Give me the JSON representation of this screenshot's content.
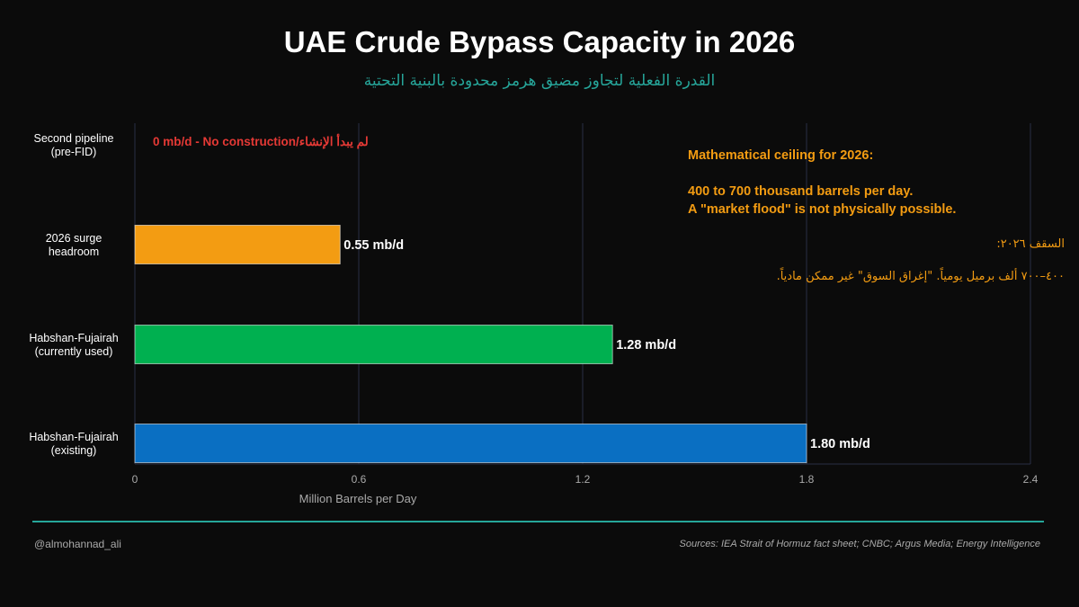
{
  "header": {
    "title": "UAE Crude Bypass Capacity in 2026",
    "subtitle": "القدرة الفعلية لتجاوز مضيق هرمز محدودة بالبنية التحتية"
  },
  "chart_data": {
    "type": "bar",
    "orientation": "horizontal",
    "categories": [
      [
        "Habshan-Fujairah",
        "(existing)"
      ],
      [
        "Habshan-Fujairah",
        "(currently used)"
      ],
      [
        "2026 surge",
        "headroom"
      ],
      [
        "Second pipeline",
        "(pre-FID)"
      ]
    ],
    "values": [
      1.8,
      1.28,
      0.55,
      0
    ],
    "data_labels": [
      "1.80 mb/d",
      "1.28 mb/d",
      "0.55 mb/d",
      ""
    ],
    "zero_bar_note": "0 mb/d - No construction/لم يبدأ الإنشاء",
    "colors": [
      "#0a6fc2",
      "#00b050",
      "#f39c12",
      "#e53935"
    ],
    "xlabel": "Million Barrels per Day",
    "xlim": [
      0,
      2.4
    ],
    "xticks": [
      0,
      0.6,
      1.2,
      1.8,
      2.4
    ],
    "xtick_labels": [
      "0",
      "0.6",
      "1.2",
      "1.8",
      "2.4"
    ],
    "grid": "vertical"
  },
  "annotation": {
    "en_line1": "Mathematical ceiling for 2026:",
    "en_line2": "400 to 700 thousand barrels per day.",
    "en_line3": "A \"market flood\" is not physically possible.",
    "ar_line1": "السقف ٢٠٢٦:",
    "ar_line2": "٤٠٠–٧٠٠ ألف برميل يومياً. \"إغراق السوق\" غير ممكن مادياً."
  },
  "footer": {
    "handle": "@almohannad_ali",
    "sources": "Sources: IEA Strait of Hormuz fact sheet; CNBC; Argus Media; Energy Intelligence"
  },
  "theme": {
    "background": "#0b0b0b",
    "accent": "#26a69a",
    "annotation": "#f39c12",
    "grid": "#2a2f45"
  }
}
